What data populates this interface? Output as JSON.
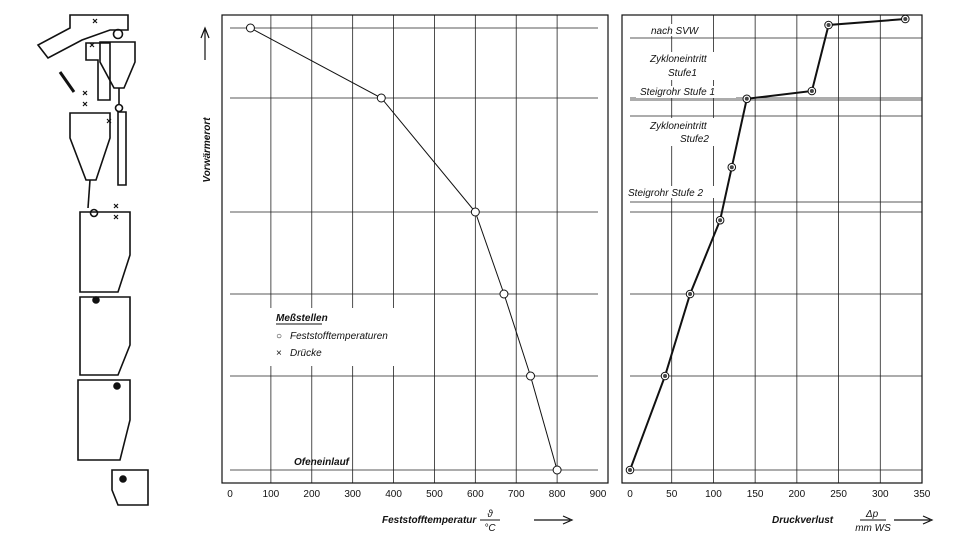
{
  "chart_data": [
    {
      "type": "line",
      "xlabel": "Feststofftemperatur",
      "xlabel_fraction_top": "ϑ",
      "xlabel_fraction_bottom": "°C",
      "ylabel": "Vorwärmerort",
      "xlim": [
        0,
        900
      ],
      "xticks": [
        "0",
        "100",
        "200",
        "300",
        "400",
        "500",
        "600",
        "700",
        "800",
        "900"
      ],
      "grid": true,
      "series": [
        {
          "marker": "open-circle",
          "x": [
            50,
            370,
            600,
            670,
            735,
            800
          ],
          "y": [
            8,
            7,
            5,
            4,
            3,
            2
          ]
        }
      ],
      "annotations": [
        {
          "text": "Ofeneinlauf"
        }
      ],
      "legend": {
        "title": "Meßstellen",
        "items": [
          {
            "symbol": "○",
            "label": "Feststofftemperaturen"
          },
          {
            "symbol": "×",
            "label": "Drücke"
          }
        ]
      }
    },
    {
      "type": "line",
      "xlabel": "Druckverlust",
      "xlabel_fraction_top": "Δp",
      "xlabel_fraction_bottom": "mm WS",
      "xlim": [
        0,
        350
      ],
      "xticks": [
        "0",
        "50",
        "100",
        "150",
        "200",
        "250",
        "300",
        "350"
      ],
      "grid": true,
      "series": [
        {
          "marker": "filled-circle",
          "x": [
            0,
            42,
            72,
            108,
            122,
            140,
            218,
            238,
            330
          ],
          "y": [
            2,
            3,
            4,
            4.9,
            5.4,
            6.6,
            7.1,
            8.3,
            8.9
          ]
        }
      ],
      "annotations": [
        {
          "text": "nach SVW"
        },
        {
          "text": "Zykloneintritt"
        },
        {
          "text": "Stufe1"
        },
        {
          "text": "Steigrohr Stufe 1"
        },
        {
          "text": "Zykloneintritt"
        },
        {
          "text": "Stufe2"
        },
        {
          "text": "Steigrohr Stufe 2"
        }
      ]
    }
  ]
}
